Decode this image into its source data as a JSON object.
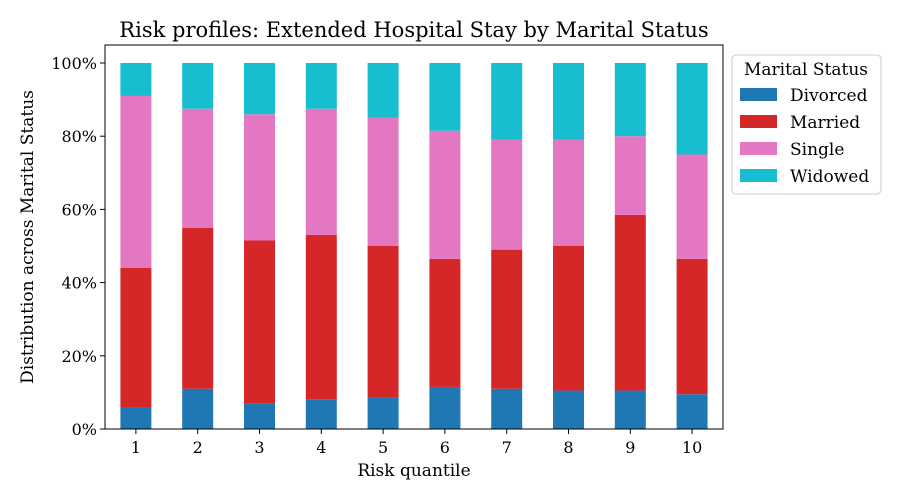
{
  "chart_data": {
    "type": "bar",
    "stacked": true,
    "title": "Risk profiles: Extended Hospital Stay by Marital Status",
    "xlabel": "Risk quantile",
    "ylabel": "Distribution across Marital Status",
    "categories": [
      "1",
      "2",
      "3",
      "4",
      "5",
      "6",
      "7",
      "8",
      "9",
      "10"
    ],
    "yticks": [
      "0%",
      "20%",
      "40%",
      "60%",
      "80%",
      "100%"
    ],
    "ylim": [
      0,
      1
    ],
    "legend": {
      "title": "Marital Status",
      "placement": "outside-top-right"
    },
    "series": [
      {
        "name": "Divorced",
        "color": "#1f77b4",
        "values": [
          0.06,
          0.11,
          0.07,
          0.08,
          0.085,
          0.115,
          0.11,
          0.105,
          0.105,
          0.095
        ]
      },
      {
        "name": "Married",
        "color": "#d62728",
        "values": [
          0.38,
          0.44,
          0.445,
          0.45,
          0.415,
          0.35,
          0.38,
          0.395,
          0.48,
          0.37
        ]
      },
      {
        "name": "Single",
        "color": "#e377c2",
        "values": [
          0.47,
          0.325,
          0.345,
          0.345,
          0.35,
          0.35,
          0.3,
          0.29,
          0.215,
          0.285
        ]
      },
      {
        "name": "Widowed",
        "color": "#17becf",
        "values": [
          0.09,
          0.125,
          0.14,
          0.125,
          0.15,
          0.185,
          0.21,
          0.21,
          0.2,
          0.25
        ]
      }
    ]
  }
}
